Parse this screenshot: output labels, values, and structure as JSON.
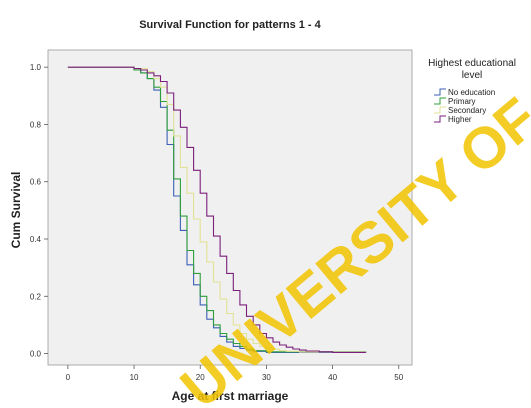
{
  "chart_data": {
    "type": "line",
    "step": true,
    "title": "Survival Function for patterns 1 - 4",
    "xlabel": "Age at first marriage",
    "ylabel": "Cum Survival",
    "xlim": [
      -3,
      52
    ],
    "ylim": [
      -0.04,
      1.06
    ],
    "xticks": [
      0,
      10,
      20,
      30,
      40,
      50
    ],
    "yticks": [
      0.0,
      0.2,
      0.4,
      0.6,
      0.8,
      1.0
    ],
    "xtick_labels": [
      "0",
      "10",
      "20",
      "30",
      "40",
      "50"
    ],
    "ytick_labels": [
      "0.0",
      "0.2",
      "0.4",
      "0.6",
      "0.8",
      "1.0"
    ],
    "grid": false,
    "plot_background": "#f0f0f0",
    "legend": {
      "title_lines": [
        "Highest educational",
        "level"
      ],
      "position": "right"
    },
    "series": [
      {
        "name": "No education",
        "color": "#3b5fb5",
        "x": [
          0,
          10,
          11,
          12,
          13,
          14,
          15,
          16,
          17,
          18,
          19,
          20,
          21,
          22,
          23,
          24,
          25,
          26,
          27,
          28,
          30,
          45
        ],
        "y": [
          1.0,
          0.99,
          0.98,
          0.96,
          0.92,
          0.86,
          0.73,
          0.55,
          0.43,
          0.31,
          0.24,
          0.17,
          0.12,
          0.09,
          0.06,
          0.04,
          0.025,
          0.018,
          0.012,
          0.008,
          0.004,
          0.004
        ]
      },
      {
        "name": "Primary",
        "color": "#2e9e3a",
        "x": [
          0,
          10,
          11,
          12,
          13,
          14,
          15,
          16,
          17,
          18,
          19,
          20,
          21,
          22,
          23,
          24,
          25,
          26,
          27,
          28,
          30,
          45
        ],
        "y": [
          1.0,
          0.99,
          0.98,
          0.96,
          0.93,
          0.88,
          0.78,
          0.61,
          0.48,
          0.36,
          0.28,
          0.2,
          0.15,
          0.1,
          0.07,
          0.05,
          0.035,
          0.025,
          0.015,
          0.01,
          0.006,
          0.005
        ]
      },
      {
        "name": "Secondary",
        "color": "#e2e296",
        "x": [
          0,
          10,
          12,
          13,
          14,
          15,
          16,
          17,
          18,
          19,
          20,
          21,
          22,
          23,
          24,
          25,
          26,
          27,
          28,
          29,
          30,
          31,
          32,
          33,
          35,
          45
        ],
        "y": [
          1.0,
          0.995,
          0.985,
          0.96,
          0.93,
          0.87,
          0.76,
          0.65,
          0.56,
          0.47,
          0.39,
          0.32,
          0.25,
          0.19,
          0.14,
          0.1,
          0.07,
          0.05,
          0.035,
          0.025,
          0.02,
          0.015,
          0.01,
          0.008,
          0.005,
          0.004
        ]
      },
      {
        "name": "Higher",
        "color": "#7b1f7b",
        "x": [
          0,
          10,
          11,
          12,
          13,
          14,
          15,
          16,
          17,
          18,
          19,
          20,
          21,
          22,
          23,
          24,
          25,
          26,
          27,
          28,
          29,
          30,
          31,
          32,
          33,
          34,
          35,
          36,
          38,
          40,
          45
        ],
        "y": [
          1.0,
          0.995,
          0.99,
          0.98,
          0.97,
          0.95,
          0.91,
          0.85,
          0.79,
          0.72,
          0.64,
          0.56,
          0.48,
          0.41,
          0.34,
          0.28,
          0.22,
          0.17,
          0.13,
          0.1,
          0.07,
          0.055,
          0.04,
          0.03,
          0.022,
          0.016,
          0.012,
          0.009,
          0.006,
          0.004,
          0.003
        ]
      }
    ]
  },
  "watermark": "UNIVERSITY OF"
}
